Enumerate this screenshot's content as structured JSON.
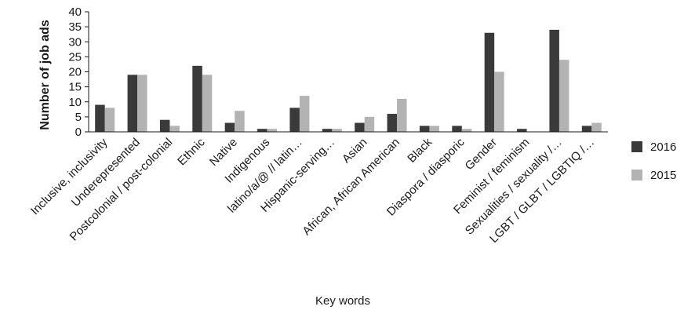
{
  "chart_data": {
    "type": "bar",
    "xlabel": "Key words",
    "ylabel": "Number of job ads",
    "ylim": [
      0,
      40
    ],
    "yticks": [
      0,
      5,
      10,
      15,
      20,
      25,
      30,
      35,
      40
    ],
    "grid": false,
    "legend_position": "right",
    "categories": [
      "Inclusive, inclusivity",
      "Underepresented",
      "Postcolonial / post-colonial",
      "Ethnic",
      "Native",
      "Indigenous",
      "latino/a/@ // latin…",
      "Hispanic-serving…",
      "Asian",
      "African, African American",
      "Black",
      "Diaspora / diasporic",
      "Gender",
      "Feminist / feminism",
      "Sexualities / sexuality /…",
      "LGBT / GLBT / LGBTIQ /…"
    ],
    "series": [
      {
        "name": "2016",
        "color": "#3a3a3a",
        "values": [
          9,
          19,
          4,
          22,
          3,
          1,
          8,
          1,
          3,
          6,
          2,
          2,
          33,
          1,
          34,
          2
        ]
      },
      {
        "name": "2015",
        "color": "#b3b3b3",
        "values": [
          8,
          19,
          2,
          19,
          7,
          1,
          12,
          1,
          5,
          11,
          2,
          1,
          20,
          0,
          24,
          3
        ]
      }
    ]
  }
}
